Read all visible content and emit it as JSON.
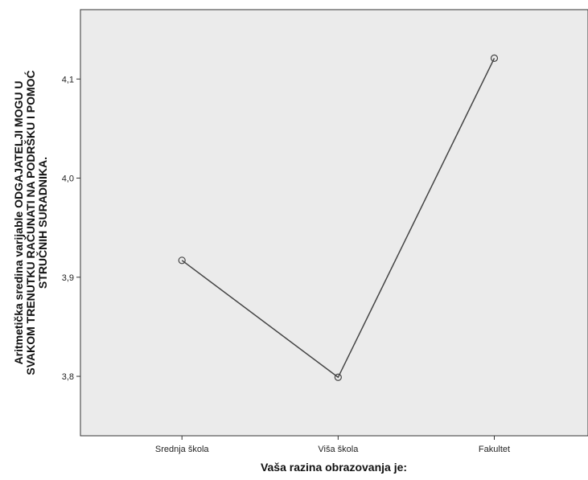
{
  "chart_data": {
    "type": "line",
    "categories": [
      "Srednja škola",
      "Viša škola",
      "Fakultet"
    ],
    "series": [
      {
        "values": [
          3.917,
          3.799,
          4.121
        ]
      }
    ],
    "xlabel": "Vaša razina obrazovanja je:",
    "ylabel_lines": [
      "Aritmetička sredina varijable ODGAJATELJI MOGU U",
      "SVAKOM TRENUTKU RAČUNATI NA PODRŠKU I POMOĆ",
      "STRUČNIH SURADNIKA."
    ],
    "y_ticks": [
      3.8,
      3.9,
      4.0,
      4.1
    ],
    "y_tick_labels": [
      "3,8",
      "3,9",
      "4,0",
      "4,1"
    ],
    "ylim": [
      3.74,
      4.17
    ],
    "grid": false,
    "marker": "open-circle",
    "colors": {
      "plot_background": "#ebebeb",
      "line": "#444444",
      "axis": "#333333"
    }
  }
}
